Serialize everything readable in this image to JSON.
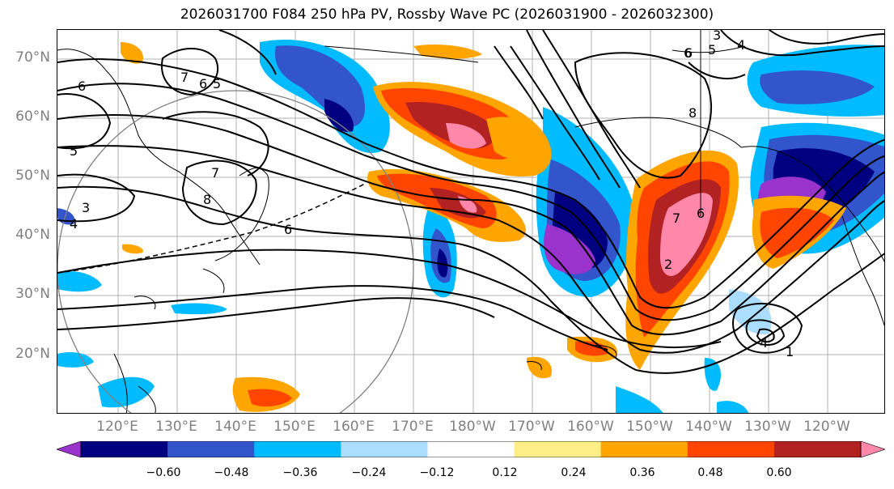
{
  "title": "2026031700 F084 250 hPa PV, Rossby Wave PC (2026031900 - 2026032300)",
  "lat_labels": [
    "70°N",
    "60°N",
    "50°N",
    "40°N",
    "30°N",
    "20°N"
  ],
  "lon_labels": [
    "120°E",
    "130°E",
    "140°E",
    "150°E",
    "160°E",
    "170°E",
    "180°W",
    "170°W",
    "160°W",
    "150°W",
    "140°W",
    "130°W",
    "120°W"
  ],
  "colorbar": {
    "ticks": [
      "−0.60",
      "−0.48",
      "−0.36",
      "−0.24",
      "−0.12",
      "0.12",
      "0.24",
      "0.36",
      "0.48",
      "0.60"
    ],
    "colors": [
      "#9933cc",
      "#000080",
      "#3355cc",
      "#00bbff",
      "#aaddff",
      "#ffffff",
      "#ffee88",
      "#ffa500",
      "#ff4500",
      "#b22222",
      "#ff88aa"
    ]
  },
  "contour_labels": [
    "7",
    "6",
    "5",
    "6",
    "7",
    "5",
    "8",
    "3",
    "4",
    "6",
    "6",
    "3",
    "6",
    "5",
    "4",
    "8",
    "7",
    "6",
    "2",
    "4",
    "1"
  ]
}
